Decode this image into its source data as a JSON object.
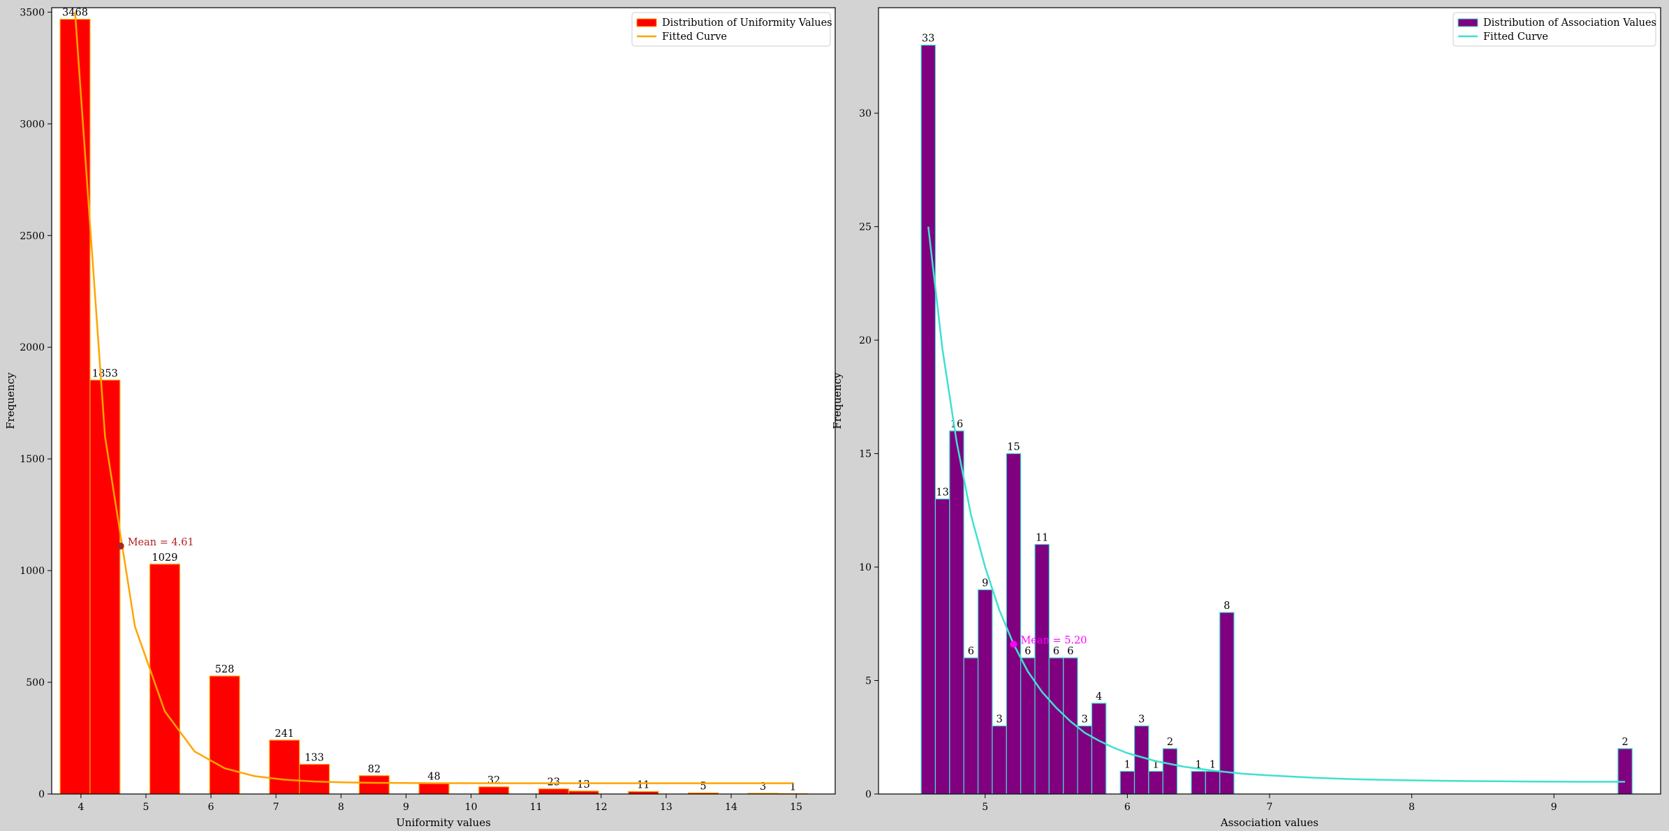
{
  "chart_data": [
    {
      "type": "bar",
      "xlabel": "Uniformity values",
      "ylabel": "Frequency",
      "xlim": [
        3.55,
        15.6
      ],
      "ylim": [
        0,
        3520
      ],
      "xticks": [
        4,
        5,
        6,
        7,
        8,
        9,
        10,
        11,
        12,
        13,
        14,
        15
      ],
      "yticks": [
        0,
        500,
        1000,
        1500,
        2000,
        2500,
        3000,
        3500
      ],
      "bar_width": 0.46,
      "colors": {
        "bar": "#ff0000",
        "edge": "#ffa500",
        "curve": "#ffa500",
        "mean": "#b22222"
      },
      "bars": [
        {
          "x": 3.68,
          "value": 3468,
          "label": "3468"
        },
        {
          "x": 4.14,
          "value": 1853,
          "label": "1853"
        },
        {
          "x": 5.06,
          "value": 1029,
          "label": "1029"
        },
        {
          "x": 5.98,
          "value": 528,
          "label": "528"
        },
        {
          "x": 6.9,
          "value": 241,
          "label": "241"
        },
        {
          "x": 7.36,
          "value": 133,
          "label": "133"
        },
        {
          "x": 8.28,
          "value": 82,
          "label": "82"
        },
        {
          "x": 9.2,
          "value": 48,
          "label": "48"
        },
        {
          "x": 10.12,
          "value": 32,
          "label": "32"
        },
        {
          "x": 11.04,
          "value": 23,
          "label": "23"
        },
        {
          "x": 11.5,
          "value": 13,
          "label": "13"
        },
        {
          "x": 12.42,
          "value": 11,
          "label": "11"
        },
        {
          "x": 13.34,
          "value": 5,
          "label": "5"
        },
        {
          "x": 14.26,
          "value": 3,
          "label": "3"
        },
        {
          "x": 14.72,
          "value": 1,
          "label": "1"
        }
      ],
      "curve": {
        "x": [
          3.91,
          4.37,
          4.83,
          5.29,
          5.75,
          6.21,
          6.67,
          7.13,
          7.59,
          8.05,
          8.51,
          8.97,
          9.43,
          9.89,
          10.35,
          10.81,
          11.27,
          11.73,
          12.19,
          12.65,
          13.11,
          13.57,
          14.03,
          14.49,
          14.95
        ],
        "y": [
          3500,
          1600,
          750,
          370,
          190,
          115,
          80,
          64,
          56,
          52,
          50,
          49,
          48.5,
          48.3,
          48.2,
          48.1,
          48.1,
          48,
          48,
          48,
          48,
          48,
          48,
          48,
          48
        ]
      },
      "mean": {
        "x": 4.61,
        "y": 1110,
        "label": "Mean = 4.61"
      },
      "legend": {
        "placement": "upper right",
        "entries": [
          {
            "kind": "bar",
            "label": "Distribution of Uniformity Values"
          },
          {
            "kind": "line",
            "label": "Fitted Curve"
          }
        ]
      }
    },
    {
      "type": "bar",
      "xlabel": "Association values",
      "ylabel": "Frequency",
      "xlim": [
        4.25,
        9.75
      ],
      "ylim": [
        0,
        34.65
      ],
      "xticks": [
        5,
        6,
        7,
        8,
        9
      ],
      "yticks": [
        0,
        5,
        10,
        15,
        20,
        25,
        30
      ],
      "bar_width": 0.1,
      "colors": {
        "bar": "#800080",
        "edge": "#40e0d0",
        "curve": "#40e0d0",
        "mean": "#ff00ff"
      },
      "bars": [
        {
          "x": 4.55,
          "value": 33,
          "label": "33"
        },
        {
          "x": 4.65,
          "value": 13,
          "label": "13"
        },
        {
          "x": 4.75,
          "value": 16,
          "label": "16"
        },
        {
          "x": 4.85,
          "value": 6,
          "label": "6"
        },
        {
          "x": 4.95,
          "value": 9,
          "label": "9"
        },
        {
          "x": 5.05,
          "value": 3,
          "label": "3"
        },
        {
          "x": 5.15,
          "value": 15,
          "label": "15"
        },
        {
          "x": 5.25,
          "value": 6,
          "label": "6"
        },
        {
          "x": 5.35,
          "value": 11,
          "label": "11"
        },
        {
          "x": 5.45,
          "value": 6,
          "label": "6"
        },
        {
          "x": 5.55,
          "value": 6,
          "label": "6"
        },
        {
          "x": 5.65,
          "value": 3,
          "label": "3"
        },
        {
          "x": 5.75,
          "value": 4,
          "label": "4"
        },
        {
          "x": 5.95,
          "value": 1,
          "label": "1"
        },
        {
          "x": 6.05,
          "value": 3,
          "label": "3"
        },
        {
          "x": 6.15,
          "value": 1,
          "label": "1"
        },
        {
          "x": 6.25,
          "value": 2,
          "label": "2"
        },
        {
          "x": 6.45,
          "value": 1,
          "label": "1"
        },
        {
          "x": 6.55,
          "value": 1,
          "label": "1"
        },
        {
          "x": 6.65,
          "value": 8,
          "label": "8"
        },
        {
          "x": 9.45,
          "value": 2,
          "label": "2"
        }
      ],
      "curve": {
        "x": [
          4.6,
          4.7,
          4.8,
          4.9,
          5.0,
          5.1,
          5.2,
          5.3,
          5.4,
          5.5,
          5.6,
          5.7,
          5.8,
          5.9,
          6.0,
          6.2,
          6.4,
          6.6,
          6.8,
          7.0,
          7.3,
          7.6,
          8.0,
          8.4,
          8.8,
          9.2,
          9.5
        ],
        "y": [
          25,
          19.6,
          15.5,
          12.3,
          10.0,
          8.1,
          6.6,
          5.4,
          4.5,
          3.8,
          3.2,
          2.7,
          2.35,
          2.05,
          1.8,
          1.45,
          1.2,
          1.03,
          0.9,
          0.82,
          0.72,
          0.65,
          0.6,
          0.57,
          0.55,
          0.54,
          0.54
        ]
      },
      "mean": {
        "x": 5.2,
        "y": 6.6,
        "label": "Mean = 5.20"
      },
      "legend": {
        "placement": "upper right",
        "entries": [
          {
            "kind": "bar",
            "label": "Distribution of Association Values"
          },
          {
            "kind": "line",
            "label": "Fitted Curve"
          }
        ]
      }
    }
  ]
}
